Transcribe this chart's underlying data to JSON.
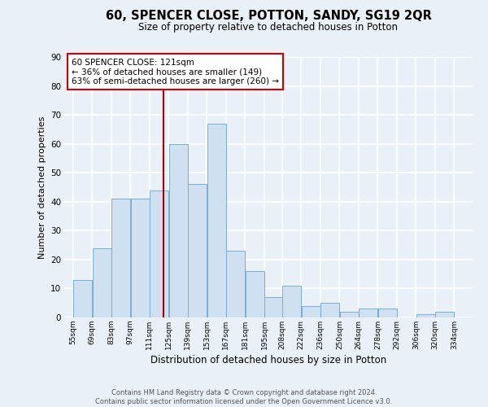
{
  "title": "60, SPENCER CLOSE, POTTON, SANDY, SG19 2QR",
  "subtitle": "Size of property relative to detached houses in Potton",
  "xlabel": "Distribution of detached houses by size in Potton",
  "ylabel": "Number of detached properties",
  "bar_color": "#cfe0f0",
  "bar_edge_color": "#7aaed4",
  "bar_left_edges": [
    55,
    69,
    83,
    97,
    111,
    125,
    139,
    153,
    167,
    181,
    195,
    208,
    222,
    236,
    250,
    264,
    278,
    292,
    306,
    320
  ],
  "bar_widths": [
    14,
    14,
    14,
    14,
    14,
    14,
    14,
    14,
    14,
    14,
    13,
    14,
    14,
    14,
    14,
    14,
    14,
    14,
    14,
    14
  ],
  "bar_heights": [
    13,
    24,
    41,
    41,
    44,
    60,
    46,
    67,
    23,
    16,
    7,
    11,
    4,
    5,
    2,
    3,
    3,
    0,
    1,
    2
  ],
  "x_tick_labels": [
    "55sqm",
    "69sqm",
    "83sqm",
    "97sqm",
    "111sqm",
    "125sqm",
    "139sqm",
    "153sqm",
    "167sqm",
    "181sqm",
    "195sqm",
    "208sqm",
    "222sqm",
    "236sqm",
    "250sqm",
    "264sqm",
    "278sqm",
    "292sqm",
    "306sqm",
    "320sqm",
    "334sqm"
  ],
  "x_tick_positions": [
    55,
    69,
    83,
    97,
    111,
    125,
    139,
    153,
    167,
    181,
    195,
    208,
    222,
    236,
    250,
    264,
    278,
    292,
    306,
    320,
    334
  ],
  "ylim": [
    0,
    90
  ],
  "xlim": [
    48,
    348
  ],
  "yticks": [
    0,
    10,
    20,
    30,
    40,
    50,
    60,
    70,
    80,
    90
  ],
  "vline_x": 121,
  "vline_color": "#aa0000",
  "annotation_title": "60 SPENCER CLOSE: 121sqm",
  "annotation_line1": "← 36% of detached houses are smaller (149)",
  "annotation_line2": "63% of semi-detached houses are larger (260) →",
  "footer_line1": "Contains HM Land Registry data © Crown copyright and database right 2024.",
  "footer_line2": "Contains public sector information licensed under the Open Government Licence v3.0.",
  "background_color": "#eaf0f8",
  "grid_color": "#ffffff"
}
